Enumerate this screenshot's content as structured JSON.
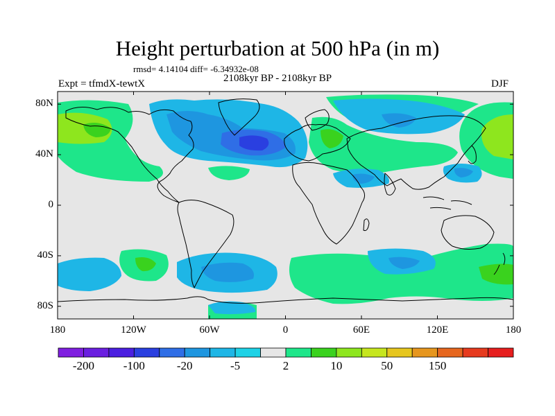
{
  "title": "Height perturbation at 500 hPa (in m)",
  "stats_line": "rmsd= 4.14104 diff= -6.34932e-08",
  "period_line": "2108kyr BP - 2108kyr BP",
  "experiment_line": "Expt = tfmdX-tewtX",
  "season": "DJF",
  "map": {
    "projection": "cylindrical equidistant",
    "lon_range": [
      -180,
      180
    ],
    "lat_range": [
      -90,
      90
    ],
    "ocean_color": "#e6e6e6",
    "coastline_color": "#000000"
  },
  "axes": {
    "lat_ticks": [
      {
        "value": 80,
        "label": "80N"
      },
      {
        "value": 40,
        "label": "40N"
      },
      {
        "value": 0,
        "label": "0"
      },
      {
        "value": -40,
        "label": "40S"
      },
      {
        "value": -80,
        "label": "80S"
      }
    ],
    "lon_ticks": [
      {
        "value": -180,
        "label": "180"
      },
      {
        "value": -120,
        "label": "120W"
      },
      {
        "value": -60,
        "label": "60W"
      },
      {
        "value": 0,
        "label": "0"
      },
      {
        "value": 60,
        "label": "60E"
      },
      {
        "value": 120,
        "label": "120E"
      },
      {
        "value": 180,
        "label": "180"
      }
    ]
  },
  "colorbar": {
    "colors": [
      "#7f1fe0",
      "#6a1fe0",
      "#4b1fe0",
      "#2a3fe0",
      "#2f6ee6",
      "#1e96e0",
      "#1eb6e6",
      "#1ed2e6",
      "#e6e6e6",
      "#1ee68a",
      "#3ad21e",
      "#8ee61e",
      "#c6e61e",
      "#e6c61e",
      "#e6961e",
      "#e6661e",
      "#e63a1e",
      "#e61e1e"
    ],
    "tick_labels": [
      {
        "index": 1,
        "label": "-200"
      },
      {
        "index": 3,
        "label": "-100"
      },
      {
        "index": 5,
        "label": "-20"
      },
      {
        "index": 7,
        "label": "-5"
      },
      {
        "index": 9,
        "label": "2"
      },
      {
        "index": 11,
        "label": "10"
      },
      {
        "index": 13,
        "label": "50"
      },
      {
        "index": 15,
        "label": "150"
      }
    ]
  },
  "anomaly_regions": [
    {
      "level": "negative-1",
      "color": "#1eb6e6",
      "desc": "North Atlantic / Greenland / Canada"
    },
    {
      "level": "negative-2",
      "color": "#1e96e0",
      "desc": "North Atlantic core"
    },
    {
      "level": "negative-3",
      "color": "#2f6ee6",
      "desc": "North Atlantic center"
    },
    {
      "level": "negative-1",
      "color": "#1eb6e6",
      "desc": "Siberia / Arctic Russia"
    },
    {
      "level": "negative-1",
      "color": "#1eb6e6",
      "desc": "Southern Atlantic"
    },
    {
      "level": "negative-1",
      "color": "#1eb6e6",
      "desc": "Southern Indian Ocean"
    },
    {
      "level": "positive-1",
      "color": "#1ee68a",
      "desc": "North Pacific"
    },
    {
      "level": "positive-2",
      "color": "#8ee61e",
      "desc": "Bering Sea / Alaska"
    },
    {
      "level": "positive-1",
      "color": "#1ee68a",
      "desc": "Europe / Middle East"
    },
    {
      "level": "positive-1",
      "color": "#1ee68a",
      "desc": "Southern Ocean east"
    }
  ]
}
